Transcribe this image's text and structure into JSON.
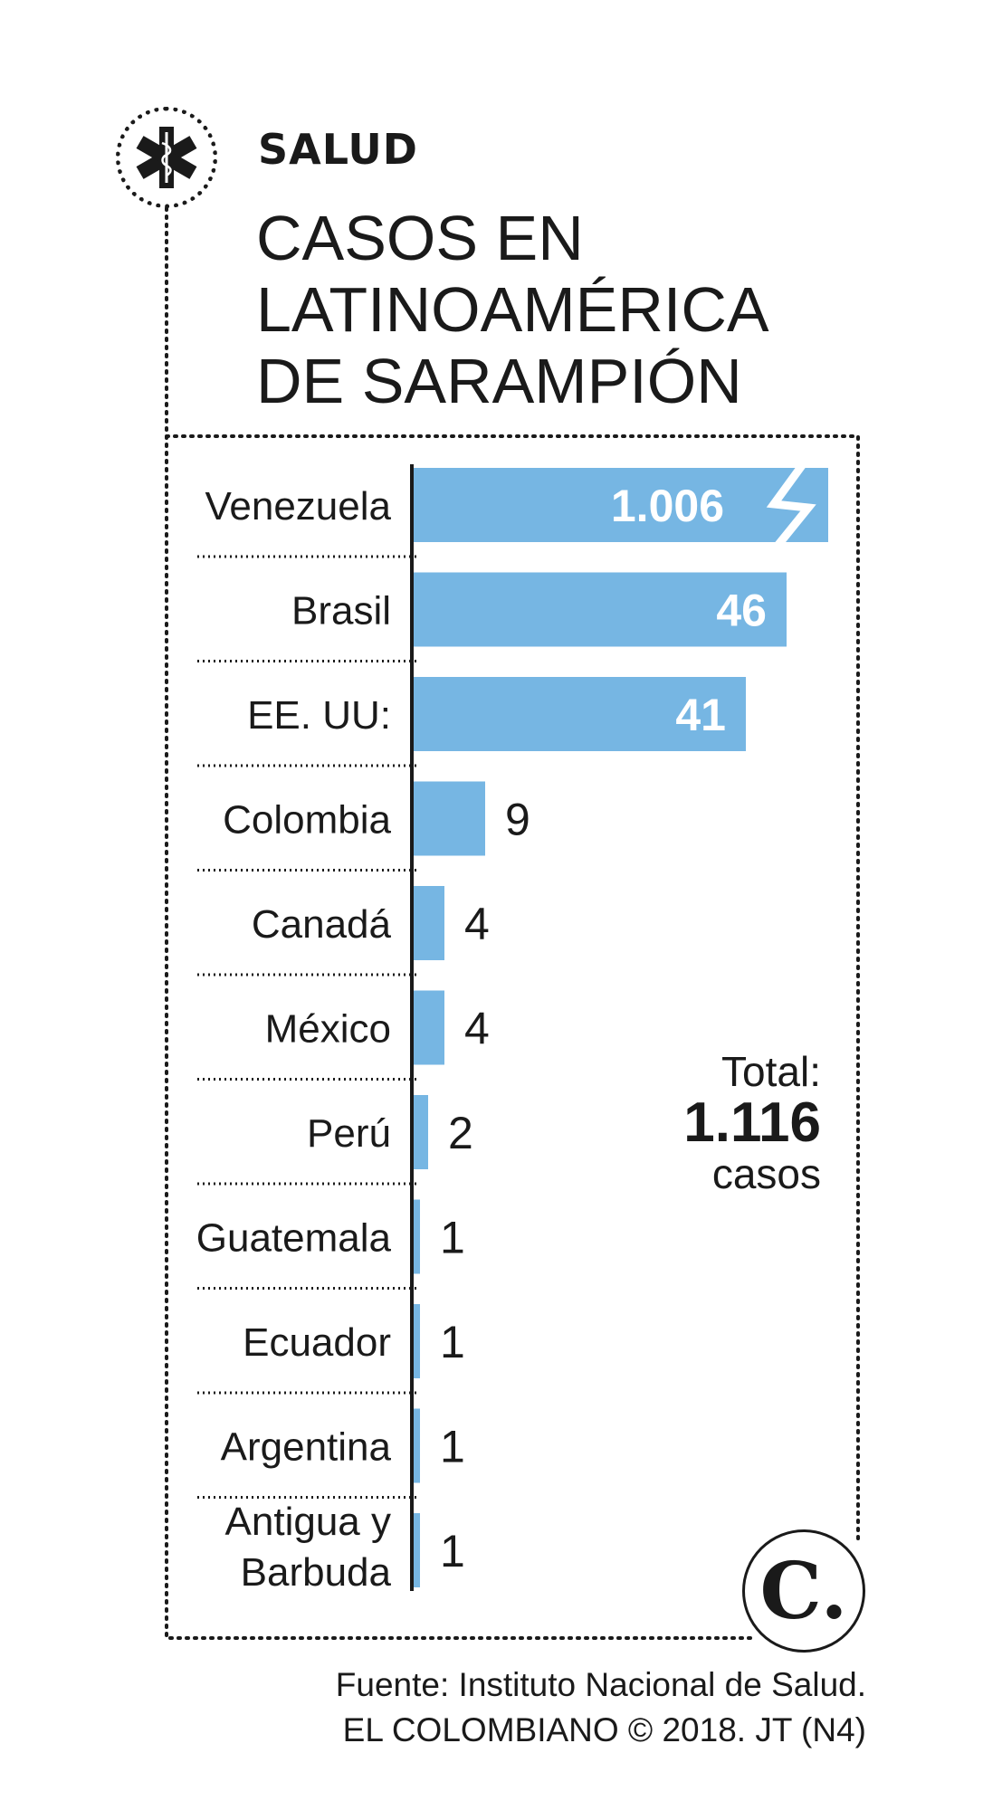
{
  "header": {
    "section": "SALUD",
    "title_lines": [
      "CASOS EN",
      "LATINOAMÉRICA",
      "DE SARAMPIÓN"
    ]
  },
  "colors": {
    "bar": "#76b6e3",
    "ink": "#1a1a1a",
    "background": "#ffffff"
  },
  "icons": {
    "header_icon": "star-of-life-icon",
    "logo": "el-colombiano-logo",
    "break_mark": "axis-break-icon"
  },
  "chart_data": {
    "type": "bar",
    "orientation": "horizontal",
    "categories": [
      [
        "Venezuela"
      ],
      [
        "Brasil"
      ],
      [
        "EE. UU:"
      ],
      [
        "Colombia"
      ],
      [
        "Canadá"
      ],
      [
        "México"
      ],
      [
        "Perú"
      ],
      [
        "Guatemala"
      ],
      [
        "Ecuador"
      ],
      [
        "Argentina"
      ],
      [
        "Antigua y",
        "Barbuda"
      ]
    ],
    "values": [
      1006,
      46,
      41,
      9,
      4,
      4,
      2,
      1,
      1,
      1,
      1
    ],
    "value_labels": [
      "1.006",
      "46",
      "41",
      "9",
      "4",
      "4",
      "2",
      "1",
      "1",
      "1",
      "1"
    ],
    "broken_bar_index": 0,
    "grid": false
  },
  "total": {
    "label": "Total:",
    "value": "1.116",
    "unit": "casos"
  },
  "logo_letter": "C.",
  "source": {
    "line1": "Fuente: Instituto Nacional de Salud.",
    "line2": "EL COLOMBIANO © 2018. JT (N4)"
  }
}
